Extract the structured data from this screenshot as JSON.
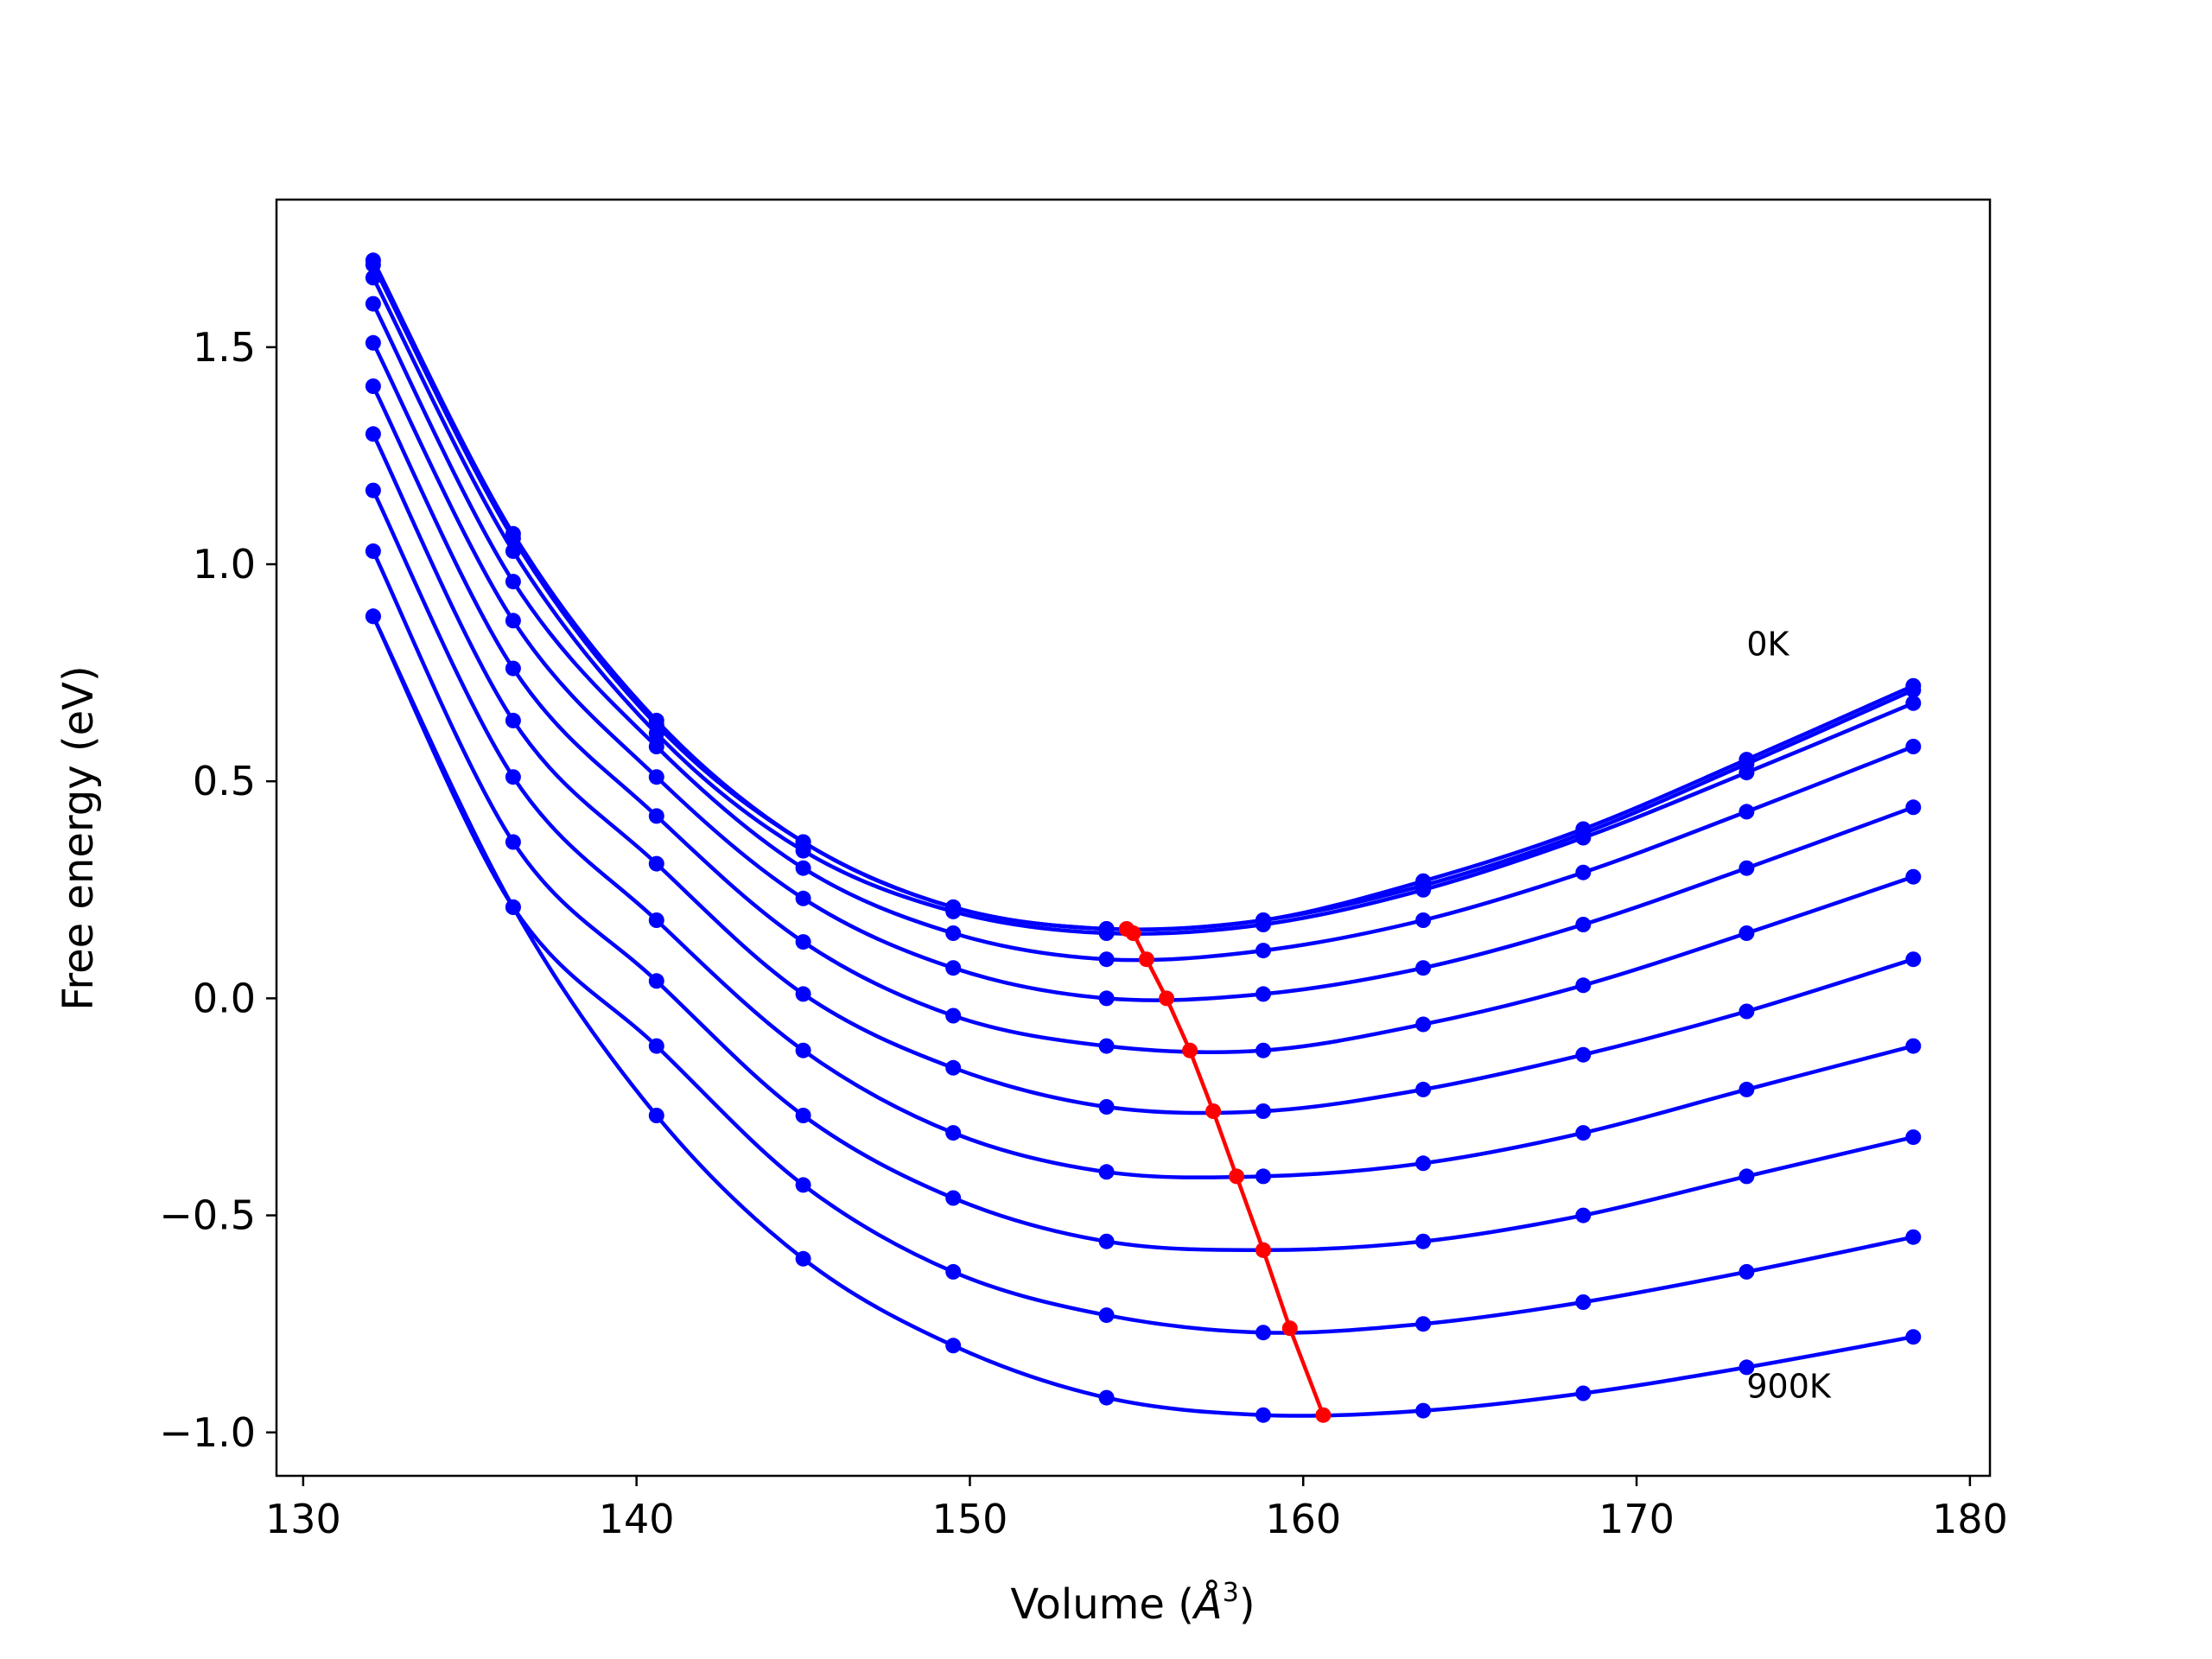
{
  "chart_data": {
    "type": "line",
    "xlabel": "Volume",
    "xlabel_unit_base": "Å",
    "xlabel_unit_power": "3",
    "ylabel": "Free energy (eV)",
    "xlim": [
      129.2,
      180.6
    ],
    "ylim": [
      -1.1,
      1.84
    ],
    "xticks": [
      130,
      140,
      150,
      160,
      170,
      180
    ],
    "yticks": [
      -1.0,
      -0.5,
      0.0,
      0.5,
      1.0,
      1.5
    ],
    "ytick_labels": [
      "−1.0",
      "−0.5",
      "0.0",
      "0.5",
      "1.0",
      "1.5"
    ],
    "annotations": [
      {
        "text": "0K",
        "x": 173.3,
        "y": 0.79
      },
      {
        "text": "900K",
        "x": 173.3,
        "y": -0.92
      }
    ],
    "x": [
      132.1,
      136.3,
      140.6,
      145.0,
      149.5,
      154.1,
      158.8,
      163.6,
      168.4,
      173.3,
      178.3
    ],
    "series": [
      {
        "values": [
          1.7,
          1.07,
          0.64,
          0.36,
          0.21,
          0.16,
          0.18,
          0.27,
          0.39,
          0.55,
          0.72
        ]
      },
      {
        "values": [
          1.69,
          1.06,
          0.63,
          0.36,
          0.21,
          0.16,
          0.18,
          0.26,
          0.38,
          0.54,
          0.71
        ]
      },
      {
        "values": [
          1.66,
          1.03,
          0.61,
          0.34,
          0.2,
          0.15,
          0.17,
          0.25,
          0.37,
          0.52,
          0.68
        ]
      },
      {
        "values": [
          1.6,
          0.96,
          0.58,
          0.3,
          0.15,
          0.09,
          0.11,
          0.18,
          0.29,
          0.43,
          0.58
        ]
      },
      {
        "values": [
          1.51,
          0.87,
          0.51,
          0.23,
          0.07,
          0.0,
          0.01,
          0.07,
          0.17,
          0.3,
          0.44
        ]
      },
      {
        "values": [
          1.41,
          0.76,
          0.42,
          0.13,
          -0.04,
          -0.11,
          -0.12,
          -0.06,
          0.03,
          0.15,
          0.28
        ]
      },
      {
        "values": [
          1.3,
          0.64,
          0.31,
          0.01,
          -0.16,
          -0.25,
          -0.26,
          -0.21,
          -0.13,
          -0.03,
          0.09
        ]
      },
      {
        "values": [
          1.17,
          0.51,
          0.18,
          -0.12,
          -0.31,
          -0.4,
          -0.41,
          -0.38,
          -0.31,
          -0.21,
          -0.11
        ]
      },
      {
        "values": [
          1.03,
          0.36,
          0.04,
          -0.27,
          -0.46,
          -0.56,
          -0.58,
          -0.56,
          -0.5,
          -0.41,
          -0.32
        ]
      },
      {
        "values": [
          0.88,
          0.21,
          -0.11,
          -0.43,
          -0.63,
          -0.73,
          -0.77,
          -0.75,
          -0.7,
          -0.63,
          -0.55
        ]
      },
      {
        "values": [
          0.88,
          0.21,
          -0.27,
          -0.6,
          -0.8,
          -0.92,
          -0.96,
          -0.95,
          -0.91,
          -0.85,
          -0.78
        ]
      }
    ],
    "minimum_curve": {
      "x": [
        154.7,
        154.9,
        155.3,
        155.9,
        156.6,
        157.3,
        158.0,
        158.8,
        159.6,
        160.6
      ],
      "y": [
        0.16,
        0.15,
        0.09,
        0.0,
        -0.12,
        -0.26,
        -0.41,
        -0.58,
        -0.76,
        -0.96
      ]
    },
    "colors": {
      "curves": "#0000ff",
      "minimum_curve": "#ff0000"
    }
  }
}
